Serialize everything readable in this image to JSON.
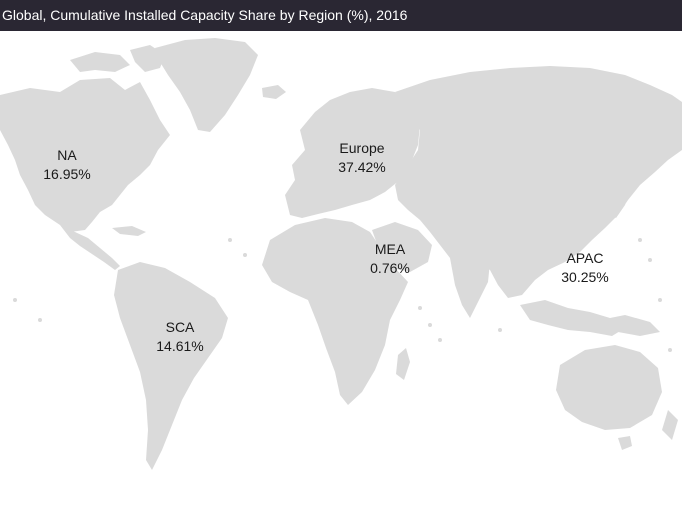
{
  "title": "Global, Cumulative  Installed Capacity Share by Region (%), 2016",
  "colors": {
    "title_bar": "#2a2733",
    "land": "#dadada",
    "label_text": "#1a1a1a"
  },
  "regions": {
    "na": {
      "name": "NA",
      "share": "16.95%"
    },
    "europe": {
      "name": "Europe",
      "share": "37.42%"
    },
    "mea": {
      "name": "MEA",
      "share": "0.76%"
    },
    "apac": {
      "name": "APAC",
      "share": "30.25%"
    },
    "sca": {
      "name": "SCA",
      "share": "14.61%"
    }
  }
}
